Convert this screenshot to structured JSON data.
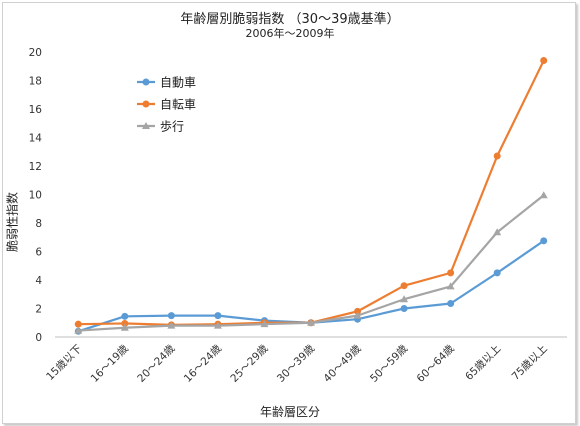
{
  "chart_data": {
    "type": "line",
    "title": "年齢層別脆弱指数 （30～39歳基準）",
    "subtitle": "2006年～2009年",
    "xlabel": "年齢層区分",
    "ylabel": "脆弱性指数",
    "ylim": [
      0,
      20
    ],
    "yticks": [
      0,
      2,
      4,
      6,
      8,
      10,
      12,
      14,
      16,
      18,
      20
    ],
    "grid": false,
    "legend_position": "top-left",
    "categories": [
      "15歳以下",
      "16～19歳",
      "20～24歳",
      "16～24歳",
      "25～29歳",
      "30～39歳",
      "40～49歳",
      "50～59歳",
      "60～64歳",
      "65歳以上",
      "75歳以上"
    ],
    "series": [
      {
        "name": "自動車",
        "color": "#5b9bd5",
        "marker": "circle",
        "values": [
          0.4,
          1.45,
          1.5,
          1.5,
          1.15,
          1.0,
          1.25,
          2.0,
          2.35,
          4.5,
          6.75
        ]
      },
      {
        "name": "自転車",
        "color": "#ed7d31",
        "marker": "circle",
        "values": [
          0.9,
          0.95,
          0.85,
          0.9,
          1.0,
          1.0,
          1.8,
          3.6,
          4.5,
          12.7,
          19.4
        ]
      },
      {
        "name": "歩行",
        "color": "#a5a5a5",
        "marker": "triangle",
        "values": [
          0.45,
          0.65,
          0.8,
          0.8,
          0.9,
          1.0,
          1.5,
          2.65,
          3.55,
          7.35,
          9.95
        ]
      }
    ]
  }
}
